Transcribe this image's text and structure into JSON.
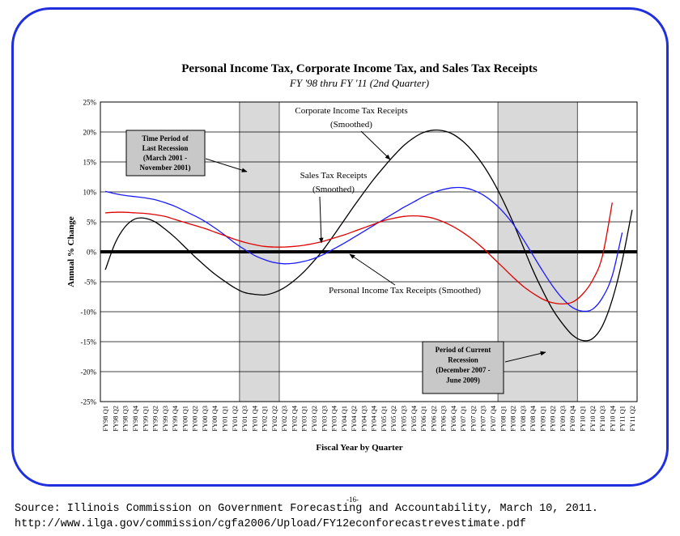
{
  "page": {
    "page_number": "-16-",
    "source_line": "Source: Illinois Commission on Government Forecasting and Accountability, March 10, 2011.",
    "url_line": "http://www.ilga.gov/commission/cgfa2006/Upload/FY12econforecastrevestimate.pdf"
  },
  "colors": {
    "frame": "#1f2fe0",
    "corporate": "#000000",
    "sales": "#1a1aff",
    "personal": "#e00000",
    "shade": "#d9d9d9"
  },
  "chart_data": {
    "type": "line",
    "title": "Personal Income Tax, Corporate Income Tax, and Sales Tax Receipts",
    "subtitle": "FY '98 thru FY '11 (2nd Quarter)",
    "xlabel": "Fiscal Year by Quarter",
    "ylabel": "Annual % Change",
    "ylim": [
      -25,
      25
    ],
    "yticks": [
      "25%",
      "20%",
      "15%",
      "10%",
      "5%",
      "0%",
      "-5%",
      "-10%",
      "-15%",
      "-20%",
      "-25%"
    ],
    "ytick_values": [
      25,
      20,
      15,
      10,
      5,
      0,
      -5,
      -10,
      -15,
      -20,
      -25
    ],
    "grid": true,
    "categories": [
      "FY98 Q1",
      "FY98 Q2",
      "FY98 Q3",
      "FY98 Q4",
      "FY99 Q1",
      "FY99 Q2",
      "FY99 Q3",
      "FY99 Q4",
      "FY00 Q1",
      "FY00 Q2",
      "FY00 Q3",
      "FY00 Q4",
      "FY01 Q1",
      "FY01 Q2",
      "FY01 Q3",
      "FY01 Q4",
      "FY02 Q1",
      "FY02 Q2",
      "FY02 Q3",
      "FY02 Q4",
      "FY03 Q1",
      "FY03 Q2",
      "FY03 Q3",
      "FY03 Q4",
      "FY04 Q1",
      "FY04 Q2",
      "FY04 Q3",
      "FY04 Q4",
      "FY05 Q1",
      "FY05 Q2",
      "FY05 Q3",
      "FY05 Q4",
      "FY06 Q1",
      "FY06 Q2",
      "FY06 Q3",
      "FY06 Q4",
      "FY07 Q1",
      "FY07 Q2",
      "FY07 Q3",
      "FY07 Q4",
      "FY08 Q1",
      "FY08 Q2",
      "FY08 Q3",
      "FY08 Q4",
      "FY09 Q1",
      "FY09 Q2",
      "FY09 Q3",
      "FY09 Q4",
      "FY10 Q1",
      "FY10 Q2",
      "FY10 Q3",
      "FY10 Q4",
      "FY11 Q1",
      "FY11 Q2"
    ],
    "series": [
      {
        "name": "Corporate Income Tax Receipts (Smoothed)",
        "color": "#000000",
        "values": [
          -3,
          1.5,
          4.2,
          5.5,
          5.6,
          5.0,
          3.8,
          2.4,
          0.8,
          -0.8,
          -2.3,
          -3.7,
          -4.9,
          -6.0,
          -6.8,
          -7.1,
          -7.2,
          -6.8,
          -6.0,
          -4.8,
          -3.3,
          -1.5,
          0.5,
          2.8,
          5.2,
          7.6,
          9.9,
          12.1,
          14.1,
          16.0,
          17.7,
          19.0,
          19.9,
          20.3,
          20.2,
          19.6,
          18.4,
          16.7,
          14.5,
          11.8,
          8.6,
          5.0,
          1.0,
          -3.0,
          -6.5,
          -9.6,
          -12.0,
          -13.9,
          -14.8,
          -14.5,
          -12.4,
          -8.0,
          -1.5,
          7.0
        ]
      },
      {
        "name": "Sales Tax Receipts (Smoothed)",
        "color": "#1a1aff",
        "values": [
          10.1,
          9.7,
          9.4,
          9.2,
          9.0,
          8.7,
          8.2,
          7.6,
          6.8,
          6.0,
          5.1,
          4.0,
          2.8,
          1.5,
          0.4,
          -0.6,
          -1.3,
          -1.8,
          -2.0,
          -1.9,
          -1.6,
          -1.1,
          -0.4,
          0.5,
          1.4,
          2.4,
          3.4,
          4.4,
          5.4,
          6.4,
          7.4,
          8.3,
          9.2,
          9.9,
          10.4,
          10.7,
          10.7,
          10.3,
          9.5,
          8.3,
          6.7,
          4.7,
          2.2,
          -0.5,
          -3.2,
          -5.7,
          -7.8,
          -9.3,
          -9.9,
          -9.6,
          -7.7,
          -4.0,
          3.2,
          null
        ]
      },
      {
        "name": "Personal Income Tax Receipts (Smoothed)",
        "color": "#e00000",
        "values": [
          6.5,
          6.6,
          6.6,
          6.5,
          6.4,
          6.2,
          5.9,
          5.4,
          4.9,
          4.4,
          3.9,
          3.3,
          2.7,
          2.1,
          1.6,
          1.2,
          0.9,
          0.8,
          0.8,
          0.9,
          1.1,
          1.4,
          1.8,
          2.3,
          2.8,
          3.4,
          4.0,
          4.6,
          5.2,
          5.6,
          5.9,
          6.0,
          5.9,
          5.6,
          5.0,
          4.2,
          3.2,
          2.0,
          0.6,
          -1.0,
          -2.6,
          -4.2,
          -5.7,
          -6.9,
          -7.9,
          -8.5,
          -8.7,
          -8.4,
          -7.1,
          -4.8,
          -0.8,
          8.2,
          null,
          null
        ]
      }
    ],
    "recession_bands": [
      {
        "start": "FY01 Q3",
        "end": "FY02 Q2"
      },
      {
        "start": "FY08 Q1",
        "end": "FY09 Q4"
      }
    ],
    "annotations": [
      {
        "lines": [
          "Corporate Income Tax Receipts",
          "(Smoothed)"
        ]
      },
      {
        "lines": [
          "Sales Tax Receipts",
          "(Smoothed)"
        ]
      },
      {
        "lines": [
          "Personal Income Tax Receipts (Smoothed)"
        ]
      },
      {
        "lines": [
          "Time Period of",
          "Last Recession",
          "(March 2001 -",
          "November 2001)"
        ]
      },
      {
        "lines": [
          "Period of Current",
          "Recession",
          "(December 2007 -",
          "June 2009)"
        ]
      }
    ]
  }
}
